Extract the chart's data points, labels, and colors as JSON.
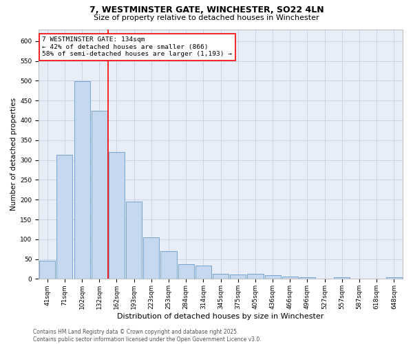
{
  "title_line1": "7, WESTMINSTER GATE, WINCHESTER, SO22 4LN",
  "title_line2": "Size of property relative to detached houses in Winchester",
  "xlabel": "Distribution of detached houses by size in Winchester",
  "ylabel": "Number of detached properties",
  "categories": [
    "41sqm",
    "71sqm",
    "102sqm",
    "132sqm",
    "162sqm",
    "193sqm",
    "223sqm",
    "253sqm",
    "284sqm",
    "314sqm",
    "345sqm",
    "375sqm",
    "405sqm",
    "436sqm",
    "466sqm",
    "496sqm",
    "527sqm",
    "557sqm",
    "587sqm",
    "618sqm",
    "648sqm"
  ],
  "values": [
    46,
    313,
    499,
    424,
    320,
    195,
    105,
    70,
    37,
    33,
    13,
    12,
    13,
    9,
    6,
    5,
    0,
    4,
    0,
    0,
    4
  ],
  "bar_color": "#c5d8f0",
  "bar_edge_color": "#6699cc",
  "red_line_index": 3,
  "annotation_text": "7 WESTMINSTER GATE: 134sqm\n← 42% of detached houses are smaller (866)\n58% of semi-detached houses are larger (1,193) →",
  "annotation_box_color": "white",
  "annotation_box_edge": "red",
  "ylim": [
    0,
    630
  ],
  "yticks": [
    0,
    50,
    100,
    150,
    200,
    250,
    300,
    350,
    400,
    450,
    500,
    550,
    600
  ],
  "grid_color": "#c8d4e8",
  "background_color": "#e8eef8",
  "footer_text": "Contains HM Land Registry data © Crown copyright and database right 2025.\nContains public sector information licensed under the Open Government Licence v3.0.",
  "title1_fontsize": 9,
  "title2_fontsize": 8,
  "xlabel_fontsize": 8,
  "ylabel_fontsize": 7.5,
  "tick_fontsize": 6.5,
  "annotation_fontsize": 6.8,
  "footer_fontsize": 5.5
}
